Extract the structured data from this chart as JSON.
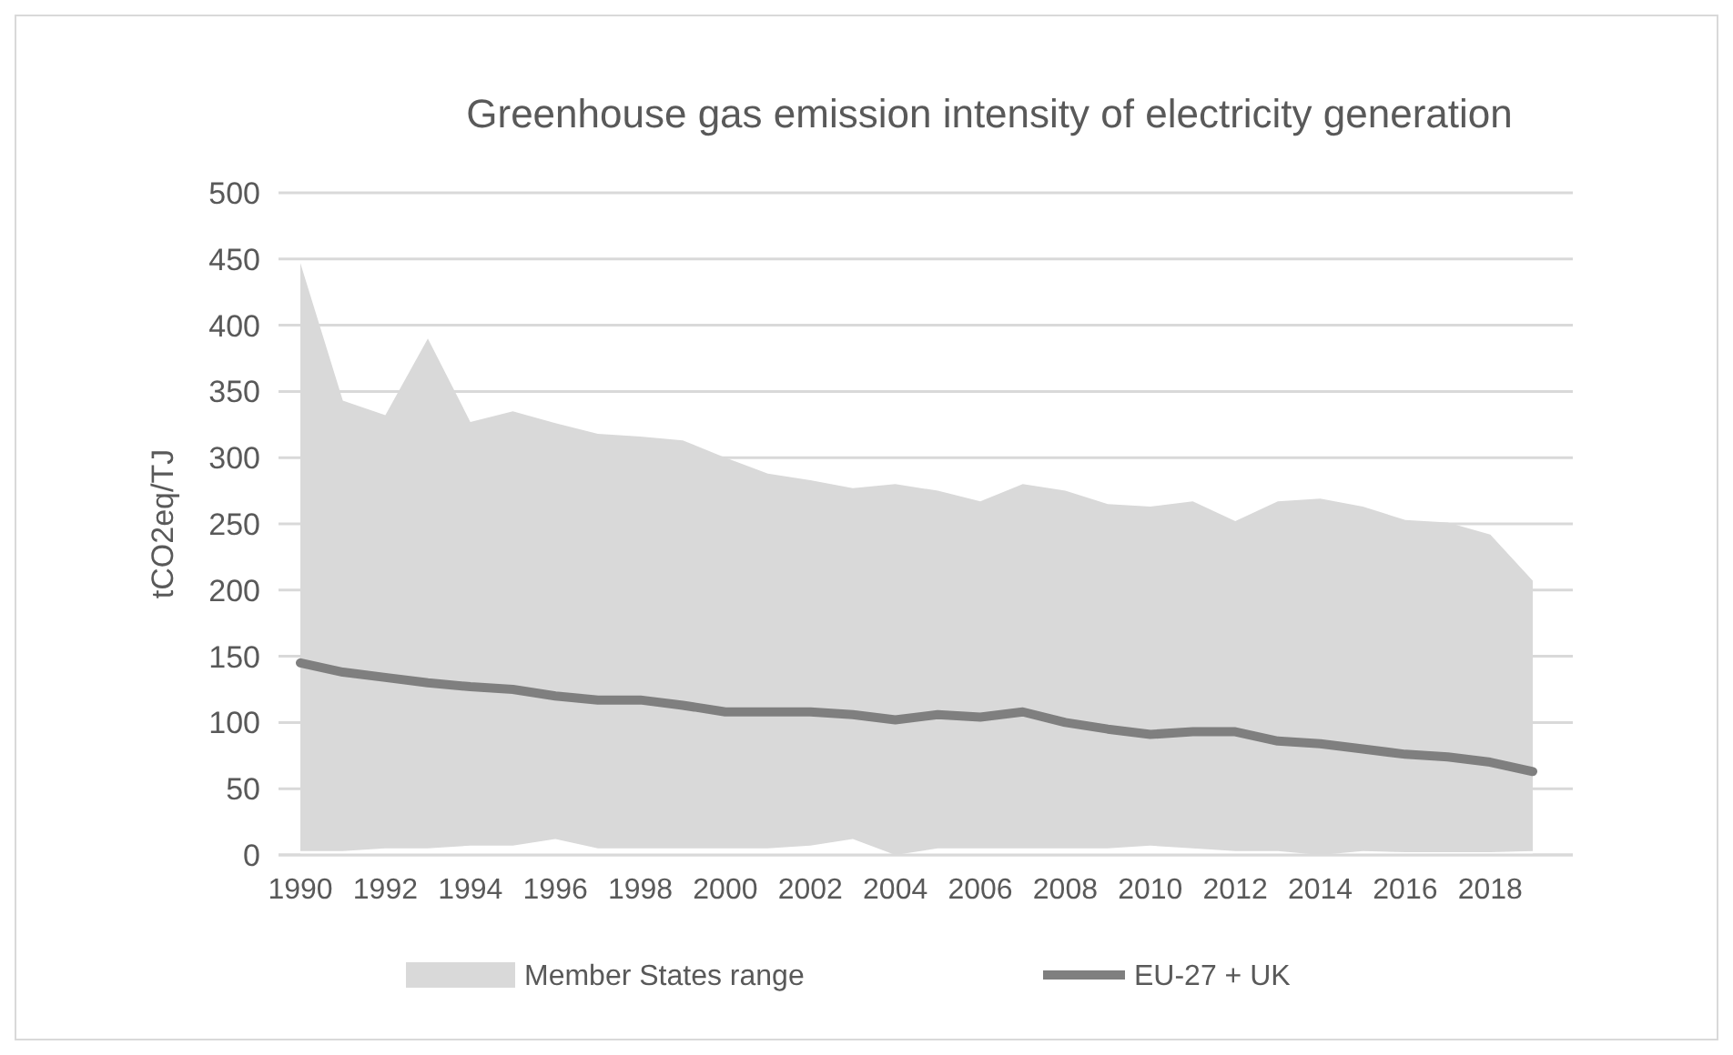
{
  "chart_data": {
    "type": "line",
    "title": "Greenhouse gas emission intensity of electricity generation",
    "ylabel": "tCO2eq/TJ",
    "categories": [
      "1990",
      null,
      "1992",
      null,
      "1994",
      null,
      "1996",
      null,
      "1998",
      null,
      "2000",
      null,
      "2002",
      null,
      "2004",
      null,
      "2006",
      null,
      "2008",
      null,
      "2010",
      null,
      "2012",
      null,
      "2014",
      null,
      "2016",
      null,
      "2018",
      null
    ],
    "stacked": true,
    "series": [
      {
        "type": "area",
        "color": "#ffffff",
        "values": [
          3,
          3,
          5,
          5,
          7,
          7,
          12,
          5,
          5,
          5,
          5,
          5,
          7,
          12,
          0,
          5,
          5,
          5,
          5,
          5,
          7,
          5,
          3,
          3,
          0,
          3,
          2,
          2,
          2,
          3
        ]
      },
      {
        "name": "Member States range",
        "type": "area",
        "color": "#d9d9d9",
        "values": [
          444,
          340,
          327,
          385,
          320,
          328,
          314,
          313,
          311,
          308,
          295,
          283,
          276,
          265,
          280,
          270,
          262,
          275,
          270,
          260,
          256,
          262,
          249,
          264,
          269,
          260,
          251,
          249,
          240,
          204
        ]
      },
      {
        "name": "EU-27 + UK",
        "type": "line",
        "color": "#7f7f7f",
        "values": [
          145,
          138,
          134,
          130,
          127,
          125,
          120,
          117,
          117,
          113,
          108,
          108,
          108,
          106,
          102,
          106,
          104,
          108,
          100,
          95,
          91,
          93,
          93,
          86,
          84,
          80,
          76,
          74,
          70,
          63
        ]
      }
    ],
    "ylim": [
      0,
      500
    ],
    "yticks": [
      0,
      50,
      100,
      150,
      200,
      250,
      300,
      350,
      400,
      450,
      500
    ],
    "grid": "y",
    "legend": "bottom",
    "marker": "none",
    "line_style": "solid"
  }
}
